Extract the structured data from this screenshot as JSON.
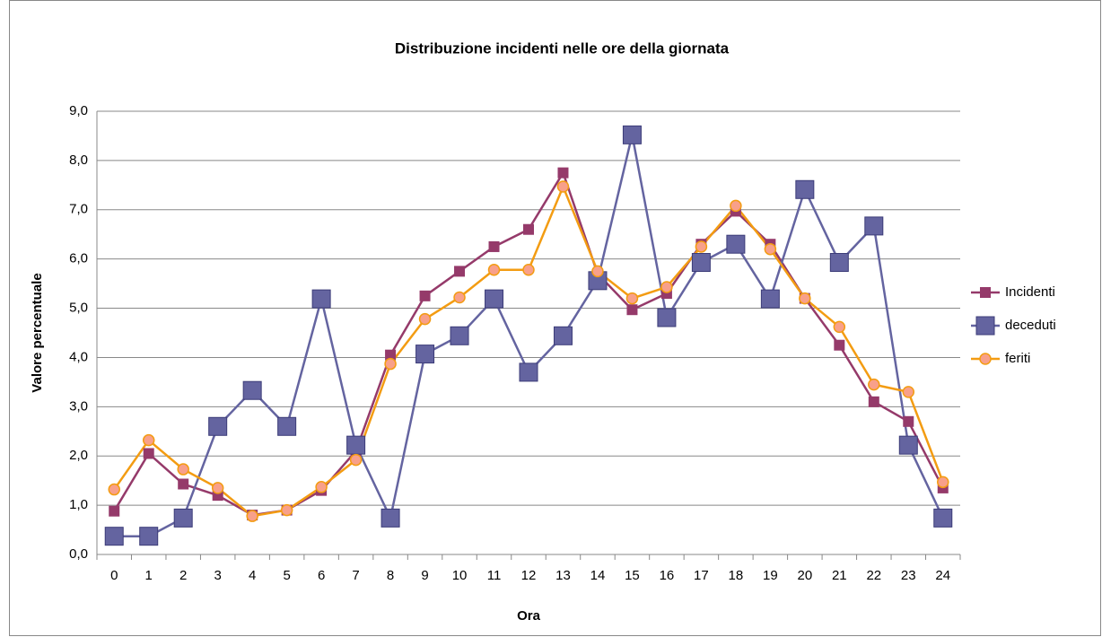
{
  "chart_data": {
    "type": "line",
    "title": "Distribuzione incidenti nelle ore della giornata",
    "x_label": "Ora",
    "y_label": "Valore percentuale",
    "categories": [
      "0",
      "1",
      "2",
      "3",
      "4",
      "5",
      "6",
      "7",
      "8",
      "9",
      "10",
      "11",
      "12",
      "13",
      "14",
      "15",
      "16",
      "17",
      "18",
      "19",
      "20",
      "21",
      "22",
      "23",
      "24"
    ],
    "series": [
      {
        "name": "Incidenti",
        "color": "#953a6a",
        "marker": "square",
        "values": [
          0.88,
          2.05,
          1.43,
          1.2,
          0.8,
          0.9,
          1.3,
          2.1,
          4.05,
          5.25,
          5.75,
          6.25,
          6.6,
          7.75,
          5.7,
          4.97,
          5.3,
          6.3,
          6.97,
          6.3,
          5.2,
          4.25,
          3.1,
          2.7,
          1.35
        ]
      },
      {
        "name": "deceduti",
        "color": "#6464a0",
        "marker": "square",
        "values": [
          0.37,
          0.37,
          0.74,
          2.6,
          3.33,
          2.6,
          5.19,
          2.22,
          0.74,
          4.07,
          4.44,
          5.19,
          3.7,
          4.44,
          5.56,
          8.52,
          4.81,
          5.93,
          6.3,
          5.19,
          7.41,
          5.93,
          6.67,
          2.22,
          0.74
        ]
      },
      {
        "name": "feriti",
        "color": "#f39c12",
        "marker": "circle",
        "marker_fill": "#f8a08a",
        "values": [
          1.32,
          2.32,
          1.73,
          1.35,
          0.78,
          0.9,
          1.37,
          1.92,
          3.87,
          4.78,
          5.22,
          5.78,
          5.78,
          7.47,
          5.75,
          5.2,
          5.43,
          6.25,
          7.08,
          6.2,
          5.2,
          4.62,
          3.45,
          3.3,
          1.47
        ]
      }
    ],
    "ylim": [
      0,
      9
    ],
    "yticks": [
      {
        "value": 0,
        "label": "0,0"
      },
      {
        "value": 1,
        "label": "1,0"
      },
      {
        "value": 2,
        "label": "2,0"
      },
      {
        "value": 3,
        "label": "3,0"
      },
      {
        "value": 4,
        "label": "4,0"
      },
      {
        "value": 5,
        "label": "5,0"
      },
      {
        "value": 6,
        "label": "6,0"
      },
      {
        "value": 7,
        "label": "7,0"
      },
      {
        "value": 8,
        "label": "8,0"
      },
      {
        "value": 9,
        "label": "9,0"
      }
    ],
    "grid": true,
    "legend": "right"
  }
}
